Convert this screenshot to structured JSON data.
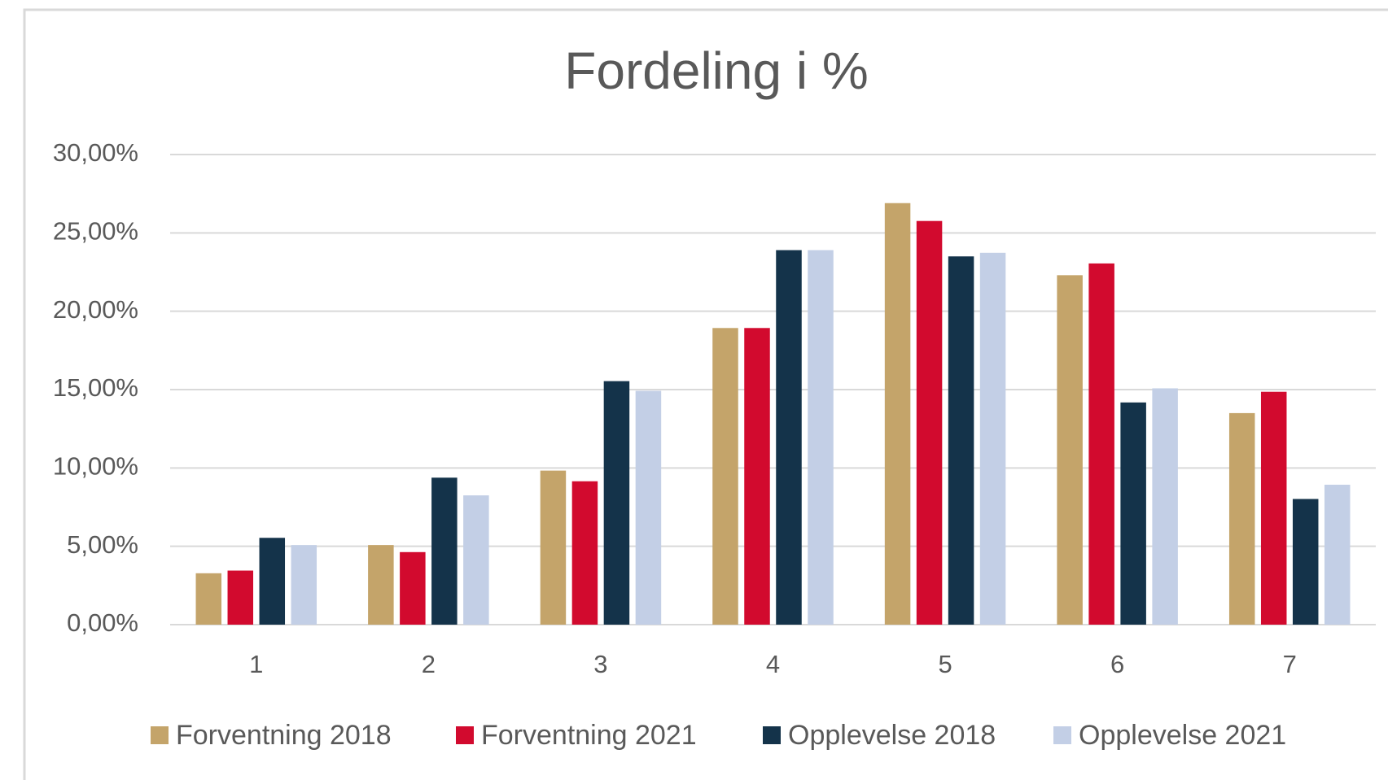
{
  "chart_data": {
    "type": "bar",
    "title": "Fordeling i %",
    "categories": [
      "1",
      "2",
      "3",
      "4",
      "5",
      "6",
      "7"
    ],
    "series": [
      {
        "name": "Forventning 2018",
        "color": "#c4a46a",
        "values": [
          3.28,
          5.08,
          9.83,
          18.93,
          26.9,
          22.3,
          13.5
        ]
      },
      {
        "name": "Forventning 2021",
        "color": "#d20a2e",
        "values": [
          3.45,
          4.63,
          9.15,
          18.93,
          25.76,
          23.05,
          14.86
        ]
      },
      {
        "name": "Opplevelse 2018",
        "color": "#14334a",
        "values": [
          5.54,
          9.38,
          15.54,
          23.9,
          23.5,
          14.18,
          8.02
        ]
      },
      {
        "name": "Opplevelse 2021",
        "color": "#c3cfe6",
        "values": [
          5.08,
          8.25,
          14.92,
          23.9,
          23.73,
          15.08,
          8.93
        ]
      }
    ],
    "ylim": [
      0,
      30
    ],
    "yticks": [
      {
        "value": 0,
        "label": "0,00%"
      },
      {
        "value": 5,
        "label": "5,00%"
      },
      {
        "value": 10,
        "label": "10,00%"
      },
      {
        "value": 15,
        "label": "15,00%"
      },
      {
        "value": 20,
        "label": "20,00%"
      },
      {
        "value": 25,
        "label": "25,00%"
      },
      {
        "value": 30,
        "label": "30,00%"
      }
    ],
    "grid": true,
    "legend": "bottom"
  }
}
